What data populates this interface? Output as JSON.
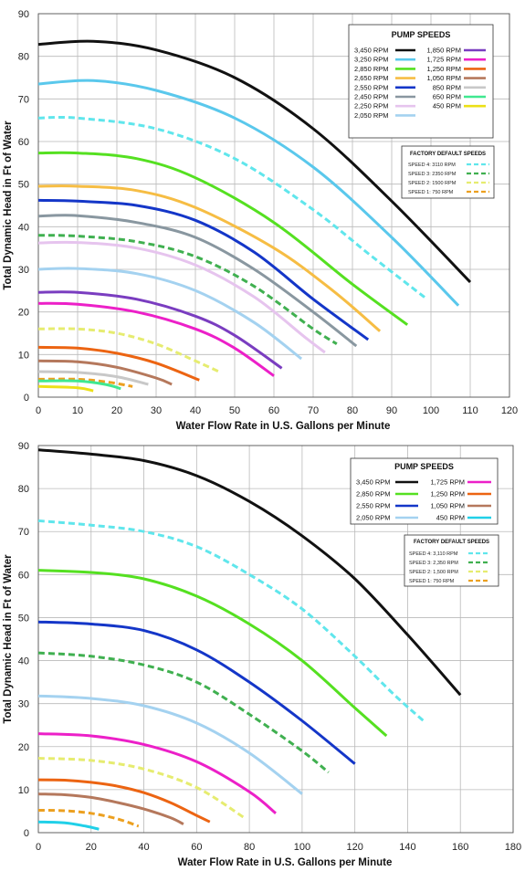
{
  "colors": {
    "3450": "#111111",
    "3250": "#5ac8ec",
    "2850": "#55e021",
    "2650": "#f6bd44",
    "2550": "#1436c8",
    "2450": "#8997a0",
    "2250": "#e6c4ee",
    "2050": "#a4d2f0",
    "1850": "#7a3dc0",
    "1725": "#ec20c8",
    "1250": "#ec6412",
    "1050": "#b5785c",
    "850": "#c8c8c8",
    "650": "#40e890",
    "450": "#ece017",
    "450b": "#20d0e8",
    "sp4": "#60e6ec",
    "sp3": "#40b050",
    "sp2": "#e6ec70",
    "sp1": "#eca020"
  },
  "chart_data": [
    {
      "type": "line",
      "xlabel": "Water Flow Rate in U.S. Gallons per Minute",
      "ylabel": "Total Dynamic Head in Ft of Water",
      "xlim": [
        0,
        120
      ],
      "ylim": [
        0,
        90
      ],
      "xticks": [
        0,
        10,
        20,
        30,
        40,
        50,
        60,
        70,
        80,
        90,
        100,
        110,
        120
      ],
      "yticks": [
        0,
        10,
        20,
        30,
        40,
        50,
        60,
        70,
        80,
        90
      ],
      "grid": true,
      "legend": {
        "title": "PUMP SPEEDS",
        "left": [
          {
            "label": "3,450 RPM",
            "color_key": "3450"
          },
          {
            "label": "3,250 RPM",
            "color_key": "3250"
          },
          {
            "label": "2,850 RPM",
            "color_key": "2850"
          },
          {
            "label": "2,650 RPM",
            "color_key": "2650"
          },
          {
            "label": "2,550 RPM",
            "color_key": "2550"
          },
          {
            "label": "2,450 RPM",
            "color_key": "2450"
          },
          {
            "label": "2,250 RPM",
            "color_key": "2250"
          },
          {
            "label": "2,050 RPM",
            "color_key": "2050"
          }
        ],
        "right": [
          {
            "label": "1,850 RPM",
            "color_key": "1850"
          },
          {
            "label": "1,725 RPM",
            "color_key": "1725"
          },
          {
            "label": "1,250 RPM",
            "color_key": "1250"
          },
          {
            "label": "1,050 RPM",
            "color_key": "1050"
          },
          {
            "label": "850 RPM",
            "color_key": "850"
          },
          {
            "label": "650 RPM",
            "color_key": "650"
          },
          {
            "label": "450 RPM",
            "color_key": "450"
          }
        ],
        "factory_title": "FACTORY DEFAULT SPEEDS",
        "factory": [
          {
            "label": "SPEED 4: 3110 RPM",
            "color_key": "sp4"
          },
          {
            "label": "SPEED 3: 2350 RPM",
            "color_key": "sp3"
          },
          {
            "label": "SPEED 2: 1500 RPM",
            "color_key": "sp2"
          },
          {
            "label": "SPEED 1:   750 RPM",
            "color_key": "sp1"
          }
        ]
      },
      "series": [
        {
          "name": "3,450 RPM",
          "color_key": "3450",
          "dashed": false,
          "x": [
            0,
            14,
            30,
            50,
            70,
            90,
            110
          ],
          "y": [
            82.8,
            83.5,
            81.5,
            75,
            63,
            46,
            27
          ]
        },
        {
          "name": "3,250 RPM",
          "color_key": "3250",
          "dashed": false,
          "x": [
            0,
            14,
            30,
            50,
            70,
            90,
            107
          ],
          "y": [
            73.5,
            74.3,
            72,
            65.5,
            54,
            37.5,
            21.5
          ]
        },
        {
          "name": "SPEED 4: 3110 RPM",
          "color_key": "sp4",
          "dashed": true,
          "x": [
            0,
            10,
            30,
            50,
            70,
            85,
            99
          ],
          "y": [
            65.5,
            65.5,
            63,
            56,
            44,
            33,
            23
          ]
        },
        {
          "name": "2,850 RPM",
          "color_key": "2850",
          "dashed": false,
          "x": [
            0,
            10,
            25,
            40,
            60,
            80,
            94
          ],
          "y": [
            57.3,
            57.3,
            56,
            51.5,
            41,
            26.5,
            17
          ]
        },
        {
          "name": "2,650 RPM",
          "color_key": "2650",
          "dashed": false,
          "x": [
            0,
            10,
            25,
            40,
            60,
            75,
            87
          ],
          "y": [
            49.5,
            49.5,
            48.5,
            44.5,
            35,
            25,
            15.5
          ]
        },
        {
          "name": "2,550 RPM",
          "color_key": "2550",
          "dashed": false,
          "x": [
            0,
            10,
            25,
            40,
            55,
            70,
            84
          ],
          "y": [
            46.2,
            46,
            45,
            41.5,
            34,
            23,
            13.5
          ]
        },
        {
          "name": "2,450 RPM",
          "color_key": "2450",
          "dashed": false,
          "x": [
            0,
            10,
            25,
            40,
            55,
            70,
            81
          ],
          "y": [
            42.5,
            42.6,
            41,
            37.5,
            30,
            20,
            12
          ]
        },
        {
          "name": "SPEED 3: 2350 RPM",
          "color_key": "sp3",
          "dashed": true,
          "x": [
            0,
            10,
            25,
            40,
            55,
            70,
            76
          ],
          "y": [
            38,
            37.8,
            36.5,
            33,
            26,
            16,
            12.5
          ]
        },
        {
          "name": "2,250 RPM",
          "color_key": "2250",
          "dashed": false,
          "x": [
            0,
            10,
            25,
            40,
            55,
            68,
            73
          ],
          "y": [
            36.2,
            36.3,
            35,
            31,
            23.5,
            14,
            10.5
          ]
        },
        {
          "name": "2,050 RPM",
          "color_key": "2050",
          "dashed": false,
          "x": [
            0,
            10,
            25,
            40,
            55,
            67
          ],
          "y": [
            30,
            30.2,
            29,
            25,
            17.5,
            9
          ]
        },
        {
          "name": "1,850 RPM",
          "color_key": "1850",
          "dashed": false,
          "x": [
            0,
            10,
            25,
            40,
            50,
            62
          ],
          "y": [
            24.6,
            24.6,
            23,
            19,
            14.5,
            6.8
          ]
        },
        {
          "name": "1,725 RPM",
          "color_key": "1725",
          "dashed": false,
          "x": [
            0,
            10,
            25,
            40,
            50,
            60
          ],
          "y": [
            22,
            21.8,
            20,
            16,
            11.5,
            5
          ]
        },
        {
          "name": "SPEED 2: 1500 RPM",
          "color_key": "sp2",
          "dashed": true,
          "x": [
            0,
            10,
            20,
            30,
            40,
            46
          ],
          "y": [
            16,
            16,
            15,
            12.5,
            8.5,
            6
          ]
        },
        {
          "name": "1,250 RPM",
          "color_key": "1250",
          "dashed": false,
          "x": [
            0,
            10,
            20,
            30,
            41
          ],
          "y": [
            11.7,
            11.5,
            10.3,
            8,
            4
          ]
        },
        {
          "name": "1,050 RPM",
          "color_key": "1050",
          "dashed": false,
          "x": [
            0,
            10,
            20,
            30,
            34
          ],
          "y": [
            8.5,
            8.3,
            7,
            4.5,
            3
          ]
        },
        {
          "name": "850 RPM",
          "color_key": "850",
          "dashed": false,
          "x": [
            0,
            10,
            20,
            28
          ],
          "y": [
            6,
            5.8,
            4.8,
            3
          ]
        },
        {
          "name": "SPEED 1: 750 RPM",
          "color_key": "sp1",
          "dashed": true,
          "x": [
            0,
            10,
            18,
            24
          ],
          "y": [
            4.2,
            4.2,
            3.5,
            2.5
          ]
        },
        {
          "name": "650 RPM",
          "color_key": "650",
          "dashed": false,
          "x": [
            0,
            10,
            17,
            21
          ],
          "y": [
            3.8,
            3.8,
            3,
            2
          ]
        },
        {
          "name": "450 RPM",
          "color_key": "450",
          "dashed": false,
          "x": [
            0,
            10,
            14
          ],
          "y": [
            2.5,
            2.2,
            1.5
          ]
        }
      ]
    },
    {
      "type": "line",
      "xlabel": "Water Flow Rate in U.S. Gallons per Minute",
      "ylabel": "Total Dynamic Head in Ft of Water",
      "xlim": [
        0,
        180
      ],
      "ylim": [
        0,
        90
      ],
      "xticks": [
        0,
        20,
        40,
        60,
        80,
        100,
        120,
        140,
        160,
        180
      ],
      "yticks": [
        0,
        10,
        20,
        30,
        40,
        50,
        60,
        70,
        80,
        90
      ],
      "grid": true,
      "legend": {
        "title": "PUMP SPEEDS",
        "left": [
          {
            "label": "3,450 RPM",
            "color_key": "3450"
          },
          {
            "label": "2,850 RPM",
            "color_key": "2850"
          },
          {
            "label": "2,550 RPM",
            "color_key": "2550"
          },
          {
            "label": "2,050 RPM",
            "color_key": "2050"
          }
        ],
        "right": [
          {
            "label": "1,725 RPM",
            "color_key": "1725"
          },
          {
            "label": "1,250 RPM",
            "color_key": "1250"
          },
          {
            "label": "1,050 RPM",
            "color_key": "1050"
          },
          {
            "label": "450 RPM",
            "color_key": "450b"
          }
        ],
        "factory_title": "FACTORY DEFAULT SPEEDS",
        "factory": [
          {
            "label": "SPEED 4: 3,110 RPM",
            "color_key": "sp4"
          },
          {
            "label": "SPEED 3: 2,350 RPM",
            "color_key": "sp3"
          },
          {
            "label": "SPEED 2: 1,500 RPM",
            "color_key": "sp2"
          },
          {
            "label": "SPEED 1:    750 RPM",
            "color_key": "sp1"
          }
        ]
      },
      "series": [
        {
          "name": "3,450 RPM",
          "color_key": "3450",
          "dashed": false,
          "x": [
            0,
            20,
            40,
            60,
            80,
            100,
            120,
            140,
            160
          ],
          "y": [
            89,
            88,
            86.5,
            83,
            77,
            69,
            59,
            46,
            32
          ]
        },
        {
          "name": "SPEED 4: 3,110 RPM",
          "color_key": "sp4",
          "dashed": true,
          "x": [
            0,
            20,
            40,
            60,
            80,
            100,
            120,
            135,
            146
          ],
          "y": [
            72.5,
            71.5,
            70,
            66.5,
            60,
            52,
            41,
            32,
            26
          ]
        },
        {
          "name": "2,850 RPM",
          "color_key": "2850",
          "dashed": false,
          "x": [
            0,
            20,
            40,
            60,
            80,
            100,
            120,
            132
          ],
          "y": [
            61,
            60.5,
            59,
            55,
            48.5,
            40,
            29,
            22.5
          ]
        },
        {
          "name": "2,550 RPM",
          "color_key": "2550",
          "dashed": false,
          "x": [
            0,
            20,
            40,
            60,
            80,
            100,
            120
          ],
          "y": [
            49,
            48.5,
            47,
            42.5,
            35,
            26,
            16
          ]
        },
        {
          "name": "SPEED 3: 2,350 RPM",
          "color_key": "sp3",
          "dashed": true,
          "x": [
            0,
            20,
            40,
            60,
            80,
            100,
            110
          ],
          "y": [
            41.8,
            41,
            39,
            35,
            27.5,
            19,
            14
          ]
        },
        {
          "name": "2,050 RPM",
          "color_key": "2050",
          "dashed": false,
          "x": [
            0,
            20,
            40,
            60,
            80,
            100
          ],
          "y": [
            31.8,
            31.2,
            29.5,
            25.5,
            18.5,
            9
          ]
        },
        {
          "name": "1,725 RPM",
          "color_key": "1725",
          "dashed": false,
          "x": [
            0,
            20,
            40,
            60,
            80,
            90
          ],
          "y": [
            23,
            22.5,
            20.5,
            16.5,
            9.5,
            4.5
          ]
        },
        {
          "name": "SPEED 2: 1,500 RPM",
          "color_key": "sp2",
          "dashed": true,
          "x": [
            0,
            20,
            40,
            60,
            78
          ],
          "y": [
            17.3,
            16.8,
            14.8,
            10.5,
            3.5
          ]
        },
        {
          "name": "1,250 RPM",
          "color_key": "1250",
          "dashed": false,
          "x": [
            0,
            10,
            20,
            30,
            40,
            50,
            60,
            65
          ],
          "y": [
            12.3,
            12.2,
            11.7,
            10.8,
            9.3,
            7,
            4,
            2.5
          ]
        },
        {
          "name": "1,050 RPM",
          "color_key": "1050",
          "dashed": false,
          "x": [
            0,
            10,
            20,
            30,
            40,
            50,
            55
          ],
          "y": [
            9,
            8.8,
            8.2,
            7,
            5.5,
            3.5,
            2
          ]
        },
        {
          "name": "SPEED 1: 750 RPM",
          "color_key": "sp1",
          "dashed": true,
          "x": [
            0,
            10,
            20,
            30,
            38
          ],
          "y": [
            5.2,
            5.1,
            4.5,
            3.2,
            1.5
          ]
        },
        {
          "name": "450 RPM",
          "color_key": "450b",
          "dashed": false,
          "x": [
            0,
            10,
            18,
            23
          ],
          "y": [
            2.5,
            2.3,
            1.5,
            0.8
          ]
        }
      ]
    }
  ]
}
